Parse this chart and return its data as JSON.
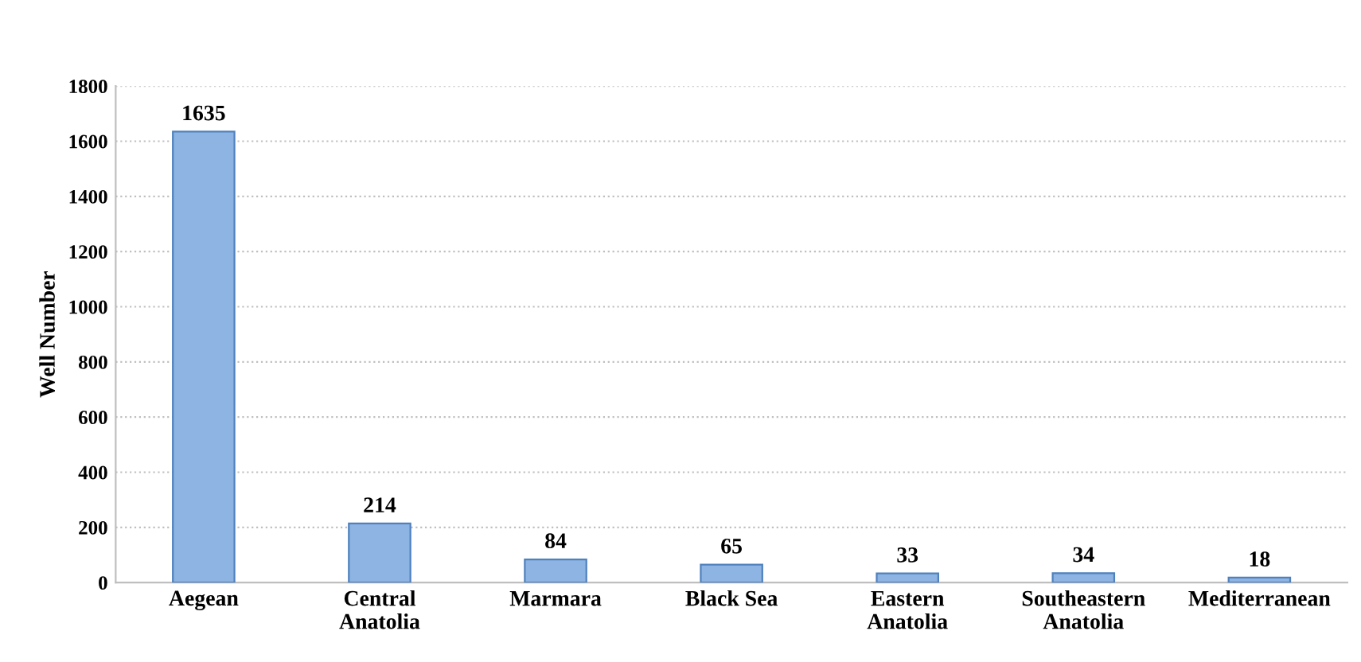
{
  "chart_data": {
    "type": "bar",
    "ylabel": "Well Number",
    "categories": [
      "Aegean",
      "Central\nAnatolia",
      "Marmara",
      "Black Sea",
      "Eastern\nAnatolia",
      "Southeastern\nAnatolia",
      "Mediterranean"
    ],
    "values": [
      1635,
      214,
      84,
      65,
      33,
      34,
      18
    ],
    "color": "#8db4e2",
    "ylim": [
      0,
      1800
    ],
    "yticks": [
      0,
      200,
      400,
      600,
      800,
      1000,
      1200,
      1400,
      1600,
      1800
    ],
    "grid": "y",
    "data_labels": true
  }
}
